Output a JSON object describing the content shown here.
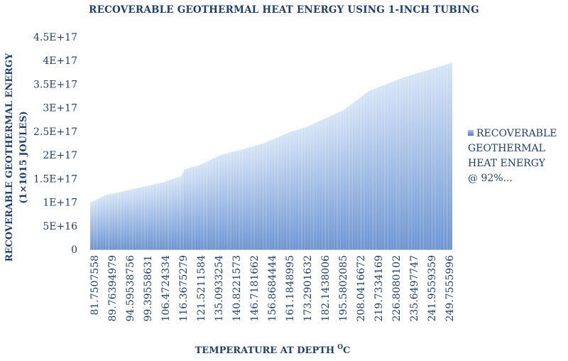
{
  "chart_data": {
    "type": "bar",
    "title": "RECOVERABLE GEOTHERMAL HEAT ENERGY USING 1-INCH TUBING",
    "xlabel": "TEMPERATURE AT DEPTH",
    "xlabel_superscript": "O",
    "xlabel_unit": "C",
    "ylabel_line1": "RECOVERABLE GEOTHERMAL ENERGY",
    "ylabel_line2": "(1×1015 JOULES)",
    "ylim": [
      0,
      4.5e+17
    ],
    "y_ticks": [
      {
        "value": 0,
        "label": "0"
      },
      {
        "value": 5e+16,
        "label": "5E+16"
      },
      {
        "value": 1e+17,
        "label": "1E+17"
      },
      {
        "value": 1.5e+17,
        "label": "1.5E+17"
      },
      {
        "value": 2e+17,
        "label": "2E+17"
      },
      {
        "value": 2.5e+17,
        "label": "2.5E+17"
      },
      {
        "value": 3e+17,
        "label": "3E+17"
      },
      {
        "value": 3.5e+17,
        "label": "3.5E+17"
      },
      {
        "value": 4e+17,
        "label": "4E+17"
      },
      {
        "value": 4.5e+17,
        "label": "4.5E+17"
      }
    ],
    "x_tick_labels": [
      "81.7507558",
      "89.7639497​9",
      "94.59538756",
      "99.39558631",
      "106.4724334",
      "116.3675279",
      "121.5211584",
      "135.0933254",
      "140.8221573",
      "146.7181662",
      "156.8684444",
      "161.1848995",
      "173.2901632",
      "182.1438006",
      "195.5802085",
      "208.0416672",
      "219.7334169",
      "226.8080102",
      "235.6497747",
      "241.9559359",
      "249.7555996"
    ],
    "bar_count": 240,
    "series": [
      {
        "name": "RECOVERABLE GEOTHERMAL HEAT ENERGY @ 92%...",
        "profile_x_fraction": [
          0,
          0.04,
          0.1,
          0.2,
          0.25,
          0.26,
          0.3,
          0.36,
          0.42,
          0.48,
          0.55,
          0.6,
          0.7,
          0.77,
          0.87,
          1.0
        ],
        "profile_values": [
          1e+17,
          1.15e+17,
          1.25e+17,
          1.42e+17,
          1.55e+17,
          1.7e+17,
          1.78e+17,
          2e+17,
          2.12e+17,
          2.25e+17,
          2.48e+17,
          2.6e+17,
          2.95e+17,
          3.35e+17,
          3.65e+17,
          3.95e+17
        ]
      }
    ],
    "legend_lines": [
      "RECOVERABLE",
      "GEOTHERMAL",
      "HEAT ENERGY",
      "@ 92%..."
    ],
    "legend_position": "right",
    "colors": {
      "bar_top": "#c9dbf7",
      "bar_bottom": "#3f74c4",
      "text": "#1f3f6e",
      "axis": "#bfbfbf"
    }
  }
}
